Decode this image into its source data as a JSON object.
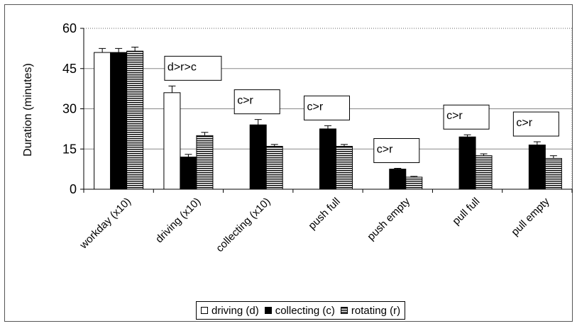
{
  "chart_data": {
    "type": "bar",
    "ylabel": "Duration (minutes)",
    "ylim": [
      0,
      60
    ],
    "yticks": [
      "0",
      "15",
      "30",
      "45",
      "60"
    ],
    "grid": true,
    "legend_position": "bottom",
    "categories": [
      "workday (x10)",
      "driving (x10)",
      "collecting (x10)",
      "push full",
      "push empty",
      "pull full",
      "pull empty"
    ],
    "series": [
      {
        "name": "driving (d)",
        "color": "#ffffff",
        "pattern": "none",
        "values": [
          51,
          36,
          0,
          0,
          0,
          0,
          0
        ],
        "errors": [
          1.5,
          2.5,
          0,
          0,
          0,
          0,
          0
        ]
      },
      {
        "name": "collecting (c)",
        "color": "#000000",
        "pattern": "solid",
        "values": [
          51,
          12,
          24,
          22.5,
          7.5,
          19.5,
          16.5
        ],
        "errors": [
          1.5,
          1,
          2,
          1.2,
          0.3,
          0.8,
          1.2
        ]
      },
      {
        "name": "rotating (r)",
        "color": "#ffffff",
        "pattern": "horizontal-stripes",
        "values": [
          51.5,
          20,
          16,
          16,
          4.5,
          12.5,
          11.5
        ],
        "errors": [
          1.5,
          1.2,
          0.7,
          0.7,
          0.3,
          0.7,
          1
        ]
      }
    ],
    "annotations": [
      {
        "category": "driving (x10)",
        "text": "d>r>c"
      },
      {
        "category": "collecting (x10)",
        "text": "c>r"
      },
      {
        "category": "push full",
        "text": "c>r"
      },
      {
        "category": "push empty",
        "text": "c>r"
      },
      {
        "category": "pull full",
        "text": "c>r"
      },
      {
        "category": "pull empty",
        "text": "c>r"
      }
    ]
  }
}
